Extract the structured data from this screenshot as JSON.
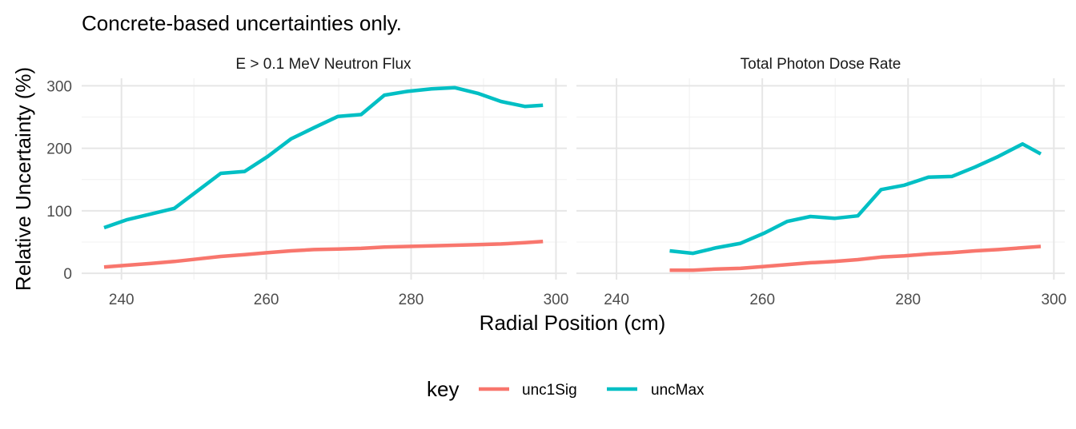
{
  "chart_data": {
    "type": "line",
    "title": "Concrete-based uncertainties only.",
    "xlabel": "Radial Position (cm)",
    "ylabel": "Relative Uncertainty (%)",
    "xlim": [
      234.5,
      301.5
    ],
    "ylim": [
      -10,
      312
    ],
    "x_ticks": [
      240,
      260,
      280,
      300
    ],
    "y_ticks": [
      0,
      100,
      200,
      300
    ],
    "grid": true,
    "legend": {
      "title": "key",
      "position": "bottom",
      "entries": [
        {
          "label": "unc1Sig",
          "color": "#F8766D"
        },
        {
          "label": "uncMax",
          "color": "#00BFC4"
        }
      ]
    },
    "panels": [
      {
        "title": "E > 0.1 MeV Neutron Flux",
        "series": [
          {
            "name": "unc1Sig",
            "color": "#F8766D",
            "x": [
              237.6,
              240.8,
              244.1,
              247.3,
              250.5,
              253.7,
              257.0,
              260.2,
              263.4,
              266.6,
              269.9,
              273.1,
              276.3,
              279.5,
              282.8,
              286.0,
              289.2,
              292.4,
              295.7,
              298.2
            ],
            "y": [
              10,
              13,
              16,
              19,
              23,
              27,
              30,
              33,
              36,
              38,
              39,
              40,
              42,
              43,
              44,
              45,
              46,
              47,
              49,
              51
            ]
          },
          {
            "name": "uncMax",
            "color": "#00BFC4",
            "x": [
              237.6,
              240.8,
              244.1,
              247.3,
              250.5,
              253.7,
              257.0,
              260.2,
              263.4,
              266.6,
              269.9,
              273.1,
              276.3,
              279.5,
              282.8,
              286.0,
              289.2,
              292.4,
              295.7,
              298.2
            ],
            "y": [
              73,
              86,
              95,
              104,
              132,
              160,
              163,
              187,
              215,
              233,
              251,
              254,
              285,
              291,
              295,
              297,
              288,
              275,
              267,
              269
            ]
          }
        ]
      },
      {
        "title": "Total Photon Dose Rate",
        "series": [
          {
            "name": "unc1Sig",
            "color": "#F8766D",
            "x": [
              247.3,
              250.5,
              253.7,
              257.0,
              260.2,
              263.4,
              266.6,
              269.9,
              273.1,
              276.3,
              279.5,
              282.8,
              286.0,
              289.2,
              292.4,
              295.7,
              298.2
            ],
            "y": [
              5,
              5,
              7,
              8,
              11,
              14,
              17,
              19,
              22,
              26,
              28,
              31,
              33,
              36,
              38,
              41,
              43
            ]
          },
          {
            "name": "uncMax",
            "color": "#00BFC4",
            "x": [
              247.3,
              250.5,
              253.7,
              257.0,
              260.2,
              263.4,
              266.6,
              269.9,
              273.1,
              276.3,
              279.5,
              282.8,
              286.0,
              289.2,
              292.4,
              295.7,
              298.2
            ],
            "y": [
              36,
              32,
              41,
              48,
              64,
              83,
              91,
              88,
              92,
              134,
              141,
              154,
              155,
              170,
              187,
              207,
              191
            ]
          }
        ]
      }
    ]
  }
}
